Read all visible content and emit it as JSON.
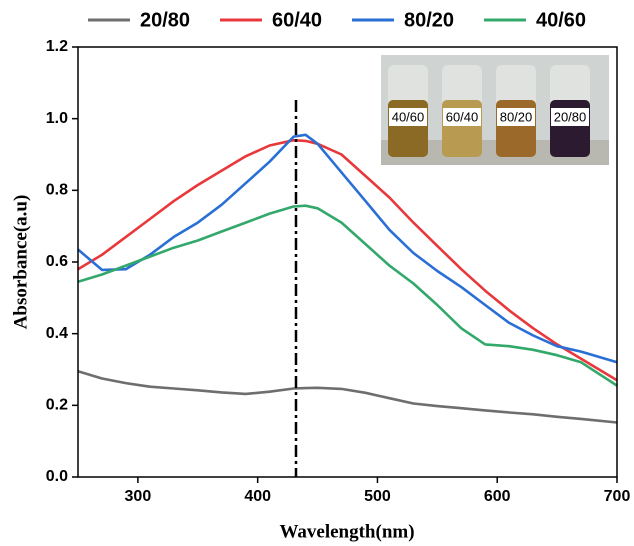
{
  "chart_data": {
    "type": "line",
    "xlabel": "Wavelength(nm)",
    "ylabel": "Absorbance(a.u)",
    "x": [
      250,
      270,
      290,
      310,
      330,
      350,
      370,
      390,
      410,
      430,
      440,
      450,
      470,
      490,
      510,
      530,
      550,
      570,
      590,
      610,
      630,
      650,
      670,
      700
    ],
    "series": [
      {
        "name": "20/80",
        "color": "#6e6e6e",
        "values": [
          0.295,
          0.275,
          0.262,
          0.252,
          0.247,
          0.242,
          0.236,
          0.232,
          0.238,
          0.247,
          0.248,
          0.249,
          0.246,
          0.235,
          0.22,
          0.205,
          0.198,
          0.192,
          0.186,
          0.18,
          0.175,
          0.168,
          0.162,
          0.152
        ]
      },
      {
        "name": "60/40",
        "color": "#e8383b",
        "values": [
          0.58,
          0.62,
          0.67,
          0.72,
          0.77,
          0.815,
          0.855,
          0.895,
          0.925,
          0.94,
          0.938,
          0.93,
          0.9,
          0.84,
          0.78,
          0.71,
          0.645,
          0.58,
          0.52,
          0.465,
          0.415,
          0.37,
          0.33,
          0.27
        ]
      },
      {
        "name": "80/20",
        "color": "#2a6fd6",
        "values": [
          0.635,
          0.578,
          0.58,
          0.62,
          0.67,
          0.71,
          0.76,
          0.82,
          0.88,
          0.95,
          0.955,
          0.93,
          0.85,
          0.77,
          0.69,
          0.625,
          0.575,
          0.53,
          0.48,
          0.43,
          0.395,
          0.365,
          0.35,
          0.32
        ]
      },
      {
        "name": "40/60",
        "color": "#33a86b",
        "values": [
          0.545,
          0.565,
          0.59,
          0.615,
          0.64,
          0.66,
          0.685,
          0.71,
          0.735,
          0.755,
          0.757,
          0.75,
          0.71,
          0.65,
          0.59,
          0.54,
          0.48,
          0.415,
          0.37,
          0.365,
          0.355,
          0.34,
          0.32,
          0.255
        ]
      }
    ],
    "xlim": [
      250,
      700
    ],
    "xticks": [
      300,
      400,
      500,
      600,
      700
    ],
    "ylim": [
      0,
      1.2
    ],
    "yticks": [
      {
        "value": 0,
        "label": "0.0"
      },
      {
        "value": 0.2,
        "label": "0.2"
      },
      {
        "value": 0.4,
        "label": "0.4"
      },
      {
        "value": 0.6,
        "label": "0.6"
      },
      {
        "value": 0.8,
        "label": "0.8"
      },
      {
        "value": 1,
        "label": "1.0"
      },
      {
        "value": 1.2,
        "label": "1.2"
      }
    ],
    "vline": 432,
    "inset_labels": [
      "40/60",
      "60/40",
      "80/20",
      "20/80"
    ],
    "legend": "top"
  }
}
